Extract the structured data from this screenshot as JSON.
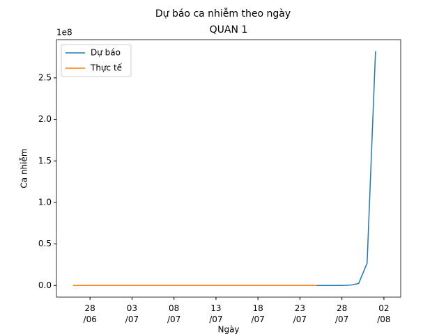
{
  "chart_data": {
    "type": "line",
    "title": "Dự báo ca nhiễm theo ngày",
    "subtitle": "QUAN 1",
    "x_label": "Ngày",
    "y_label": "Ca nhiễm",
    "y_offset_label": "1e8",
    "legend": "upper left",
    "series": [
      {
        "name": "Dự báo",
        "color": "#1f77b4",
        "x": [
          "26/06",
          "27/06",
          "28/06",
          "29/06",
          "30/06",
          "01/07",
          "02/07",
          "03/07",
          "04/07",
          "05/07",
          "06/07",
          "07/07",
          "08/07",
          "09/07",
          "10/07",
          "11/07",
          "12/07",
          "13/07",
          "14/07",
          "15/07",
          "16/07",
          "17/07",
          "18/07",
          "19/07",
          "20/07",
          "21/07",
          "22/07",
          "23/07",
          "24/07",
          "25/07",
          "26/07",
          "27/07",
          "28/07",
          "29/07",
          "30/07",
          "31/07",
          "01/08"
        ],
        "values": [
          0,
          0,
          0,
          0,
          0,
          0,
          0,
          0,
          0,
          0,
          0,
          0,
          0,
          0,
          0,
          0,
          0,
          0,
          0,
          0,
          0,
          0,
          0,
          0,
          0,
          0,
          0,
          0,
          0,
          0,
          0,
          0,
          0.0005,
          0.004,
          0.025,
          0.27,
          2.82
        ]
      },
      {
        "name": "Thực tế",
        "color": "#ff7f0e",
        "x": [
          "26/06",
          "27/06",
          "28/06",
          "29/06",
          "30/06",
          "01/07",
          "02/07",
          "03/07",
          "04/07",
          "05/07",
          "06/07",
          "07/07",
          "08/07",
          "09/07",
          "10/07",
          "11/07",
          "12/07",
          "13/07",
          "14/07",
          "15/07",
          "16/07",
          "17/07",
          "18/07",
          "19/07",
          "20/07",
          "21/07",
          "22/07",
          "23/07",
          "24/07",
          "25/07"
        ],
        "values": [
          0,
          0,
          0,
          0,
          0,
          0,
          0,
          0,
          0,
          0,
          0,
          0,
          0,
          0,
          0,
          0,
          0,
          0,
          0,
          0,
          0,
          0,
          0,
          0,
          0,
          0,
          0,
          0,
          0,
          0
        ]
      }
    ],
    "xlim": [
      "24/06",
      "04/08"
    ],
    "xticks": [
      {
        "value": "28/06",
        "label": "28\n/06"
      },
      {
        "value": "03/07",
        "label": "03\n/07"
      },
      {
        "value": "08/07",
        "label": "08\n/07"
      },
      {
        "value": "13/07",
        "label": "13\n/07"
      },
      {
        "value": "18/07",
        "label": "18\n/07"
      },
      {
        "value": "23/07",
        "label": "23\n/07"
      },
      {
        "value": "28/07",
        "label": "28\n/07"
      },
      {
        "value": "02/08",
        "label": "02\n/08"
      }
    ],
    "ylim": [
      -0.14,
      2.96
    ],
    "yticks": [
      {
        "value": 0,
        "label": "0.0"
      },
      0.5,
      {
        "value": 1,
        "label": "1.0"
      },
      1.5,
      {
        "value": 2,
        "label": "2.0"
      },
      2.5
    ]
  }
}
